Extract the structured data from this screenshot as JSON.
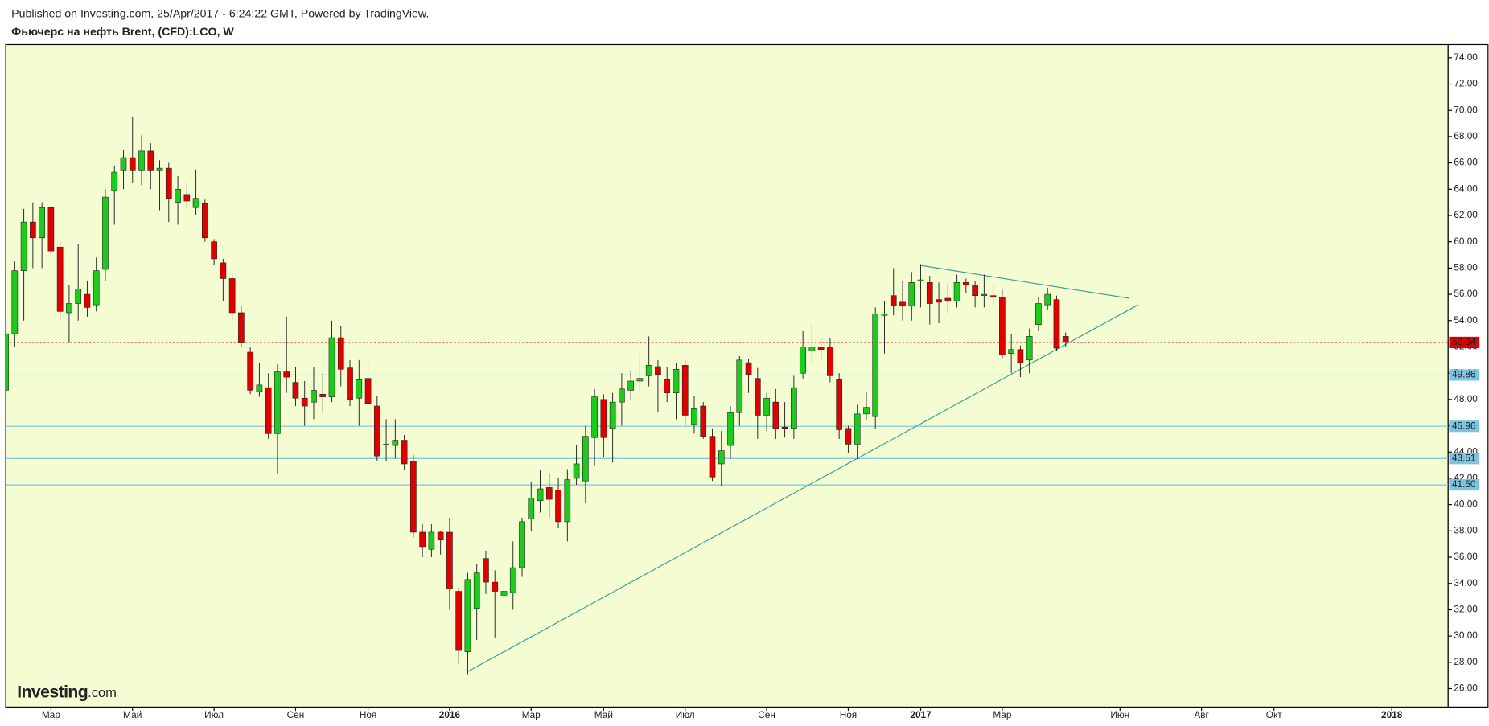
{
  "chart_data": {
    "type": "candlestick",
    "published": "Published on Investing.com, 25/Apr/2017 - 6:24:22 GMT, Powered by TradingView.",
    "title": "Фьючерс на нефть Brent, (CFD):LCO, W",
    "watermark": [
      "Investing",
      ".com"
    ],
    "categories": [
      null,
      null,
      null,
      null,
      null,
      "Мар",
      null,
      null,
      null,
      null,
      null,
      null,
      null,
      null,
      "Май",
      null,
      null,
      null,
      null,
      null,
      null,
      null,
      null,
      "Июл",
      null,
      null,
      null,
      null,
      null,
      null,
      null,
      null,
      "Сен",
      null,
      null,
      null,
      null,
      null,
      null,
      null,
      "Ноя",
      null,
      null,
      null,
      null,
      null,
      null,
      null,
      null,
      "2016",
      null,
      null,
      null,
      null,
      null,
      null,
      null,
      null,
      "Мар",
      null,
      null,
      null,
      null,
      null,
      null,
      null,
      "Май",
      null,
      null,
      null,
      null,
      null,
      null,
      null,
      null,
      "Июл",
      null,
      null,
      null,
      null,
      null,
      null,
      null,
      null,
      "Сен",
      null,
      null,
      null,
      null,
      null,
      null,
      null,
      null,
      "Ноя",
      null,
      null,
      null,
      null,
      null,
      null,
      null,
      "2017",
      null,
      null,
      null,
      null,
      null,
      null,
      null,
      null,
      "Мар",
      null,
      null,
      null,
      null,
      null,
      null,
      null,
      null,
      null,
      null,
      null,
      null,
      "Июн",
      null,
      null,
      null,
      null,
      null,
      null,
      null,
      null,
      "Авг",
      null,
      null,
      null,
      null,
      null,
      null,
      null,
      "Окт",
      null,
      null,
      null,
      null,
      null,
      null,
      null,
      null,
      null,
      null,
      null,
      null,
      "2018",
      null,
      null,
      null,
      null,
      null
    ],
    "open": [
      48.7,
      53.0,
      57.8,
      61.5,
      60.3,
      62.6,
      59.6,
      54.6,
      55.3,
      56.0,
      55.2,
      57.9,
      63.9,
      65.4,
      66.4,
      65.4,
      66.9,
      65.4,
      65.6,
      63.0,
      63.6,
      62.6,
      62.9,
      60.0,
      58.4,
      57.2,
      54.6,
      51.6,
      48.6,
      48.9,
      45.4,
      50.1,
      49.3,
      48.1,
      47.8,
      48.4,
      48.2,
      52.7,
      50.4,
      48.1,
      49.6,
      47.5,
      44.6,
      44.5,
      44.9,
      43.3,
      37.9,
      36.6,
      37.9,
      37.9,
      33.4,
      28.8,
      32.1,
      35.9,
      34.1,
      33.1,
      33.3,
      35.2,
      38.9,
      40.3,
      41.3,
      41.1,
      38.7,
      42.0,
      41.8,
      45.1,
      48.0,
      45.8,
      47.8,
      48.7,
      49.4,
      49.8,
      50.5,
      49.5,
      48.5,
      50.6,
      46.1,
      47.5,
      45.2,
      43.1,
      44.5,
      47.0,
      50.8,
      49.6,
      46.8,
      47.8,
      45.9,
      45.8,
      50.0,
      51.7,
      52.0,
      52.0,
      49.5,
      45.8,
      44.6,
      46.9,
      46.7,
      54.4,
      55.9,
      55.4,
      55.1,
      57.0,
      56.9,
      55.6,
      55.7,
      55.5,
      56.9,
      56.7,
      55.9,
      55.9,
      55.8,
      51.5,
      51.8,
      51.0,
      53.7,
      55.2,
      55.6,
      52.8,
      null,
      null,
      null,
      null,
      null,
      null,
      null,
      null,
      null,
      null,
      null,
      null,
      null,
      null,
      null,
      null,
      null,
      null,
      null,
      null,
      null,
      null,
      null,
      null,
      null,
      null,
      null,
      null,
      null,
      null,
      null,
      null,
      null,
      null,
      null,
      null,
      null,
      null,
      null,
      null,
      null
    ],
    "high": [
      53.5,
      58.5,
      62.5,
      63.0,
      63.0,
      62.8,
      60.0,
      56.7,
      59.8,
      57.0,
      58.8,
      64.0,
      65.8,
      67.0,
      69.5,
      68.1,
      67.5,
      66.2,
      66.0,
      65.0,
      64.5,
      65.5,
      63.2,
      60.2,
      58.7,
      57.6,
      55.1,
      52.0,
      50.8,
      50.0,
      50.7,
      54.3,
      50.5,
      49.4,
      50.5,
      50.0,
      54.0,
      53.6,
      51.0,
      51.0,
      51.2,
      48.3,
      46.5,
      46.5,
      45.3,
      43.8,
      38.5,
      38.5,
      38.0,
      39.0,
      33.7,
      34.8,
      35.5,
      36.5,
      35.0,
      35.4,
      37.2,
      39.0,
      41.7,
      42.6,
      42.4,
      42.0,
      42.7,
      44.5,
      46.0,
      48.8,
      48.4,
      48.5,
      50.0,
      50.2,
      51.5,
      52.8,
      51.0,
      50.5,
      50.8,
      51.0,
      48.3,
      47.8,
      45.8,
      45.6,
      47.5,
      51.3,
      51.1,
      50.4,
      48.5,
      48.8,
      47.8,
      49.8,
      53.2,
      53.8,
      52.7,
      52.7,
      50.0,
      46.0,
      47.6,
      48.6,
      55.0,
      55.5,
      58.0,
      57.0,
      57.7,
      58.3,
      57.4,
      56.9,
      56.8,
      57.5,
      57.2,
      57.0,
      57.5,
      56.8,
      56.4,
      53.0,
      52.1,
      53.4,
      55.8,
      56.5,
      55.9,
      53.1,
      null,
      null,
      null,
      null,
      null,
      null,
      null,
      null,
      null,
      null,
      null,
      null,
      null,
      null,
      null,
      null,
      null,
      null,
      null,
      null,
      null,
      null,
      null,
      null,
      null,
      null,
      null,
      null,
      null,
      null,
      null,
      null,
      null,
      null,
      null,
      null,
      null,
      null,
      null,
      null,
      null
    ],
    "low": [
      48.0,
      52.0,
      54.0,
      58.0,
      58.0,
      59.0,
      54.0,
      52.3,
      54.0,
      54.3,
      54.7,
      57.0,
      61.3,
      64.0,
      64.5,
      64.3,
      64.0,
      62.4,
      61.5,
      61.3,
      62.5,
      62.0,
      60.0,
      58.2,
      55.5,
      54.0,
      52.0,
      48.4,
      48.2,
      45.0,
      42.3,
      48.5,
      47.5,
      46.0,
      46.5,
      47.0,
      47.8,
      49.0,
      47.5,
      46.0,
      46.7,
      43.3,
      43.3,
      43.5,
      42.6,
      37.5,
      36.0,
      36.0,
      36.2,
      32.0,
      27.9,
      27.1,
      29.7,
      33.2,
      29.9,
      31.0,
      32.0,
      34.5,
      38.0,
      39.4,
      39.0,
      38.2,
      37.2,
      41.5,
      40.1,
      43.0,
      43.6,
      43.2,
      46.0,
      48.0,
      48.5,
      49.0,
      47.0,
      47.8,
      46.5,
      46.0,
      45.4,
      45.0,
      41.8,
      41.4,
      43.5,
      46.0,
      48.5,
      45.0,
      45.6,
      45.0,
      45.1,
      45.0,
      49.6,
      50.8,
      51.0,
      49.3,
      45.0,
      43.9,
      43.5,
      46.4,
      45.8,
      51.5,
      54.4,
      54.0,
      54.0,
      55.0,
      53.7,
      53.8,
      54.6,
      55.0,
      56.1,
      55.0,
      55.0,
      55.1,
      51.1,
      50.0,
      49.7,
      50.0,
      53.2,
      54.8,
      51.7,
      52.0,
      null,
      null,
      null,
      null,
      null,
      null,
      null,
      null,
      null,
      null,
      null,
      null,
      null,
      null,
      null,
      null,
      null,
      null,
      null,
      null,
      null,
      null,
      null,
      null,
      null,
      null,
      null,
      null,
      null,
      null,
      null,
      null,
      null,
      null,
      null,
      null,
      null,
      null,
      null,
      null,
      null
    ],
    "close": [
      53.0,
      57.8,
      61.5,
      60.3,
      62.6,
      59.3,
      54.7,
      55.3,
      56.4,
      55.0,
      57.8,
      63.4,
      65.3,
      66.4,
      65.4,
      66.9,
      65.4,
      65.6,
      63.3,
      64.0,
      63.1,
      63.3,
      60.3,
      58.7,
      57.2,
      54.6,
      52.3,
      48.7,
      49.1,
      45.4,
      50.1,
      49.7,
      48.1,
      47.5,
      48.7,
      48.2,
      52.7,
      50.3,
      48.0,
      49.5,
      47.7,
      43.7,
      44.6,
      44.9,
      43.1,
      37.9,
      36.8,
      37.9,
      37.3,
      33.6,
      28.9,
      34.3,
      34.8,
      34.1,
      33.4,
      33.4,
      35.2,
      38.7,
      40.5,
      41.2,
      40.4,
      38.7,
      41.9,
      43.1,
      45.2,
      48.2,
      45.1,
      47.8,
      48.8,
      49.4,
      49.6,
      50.6,
      49.9,
      48.5,
      50.3,
      46.8,
      47.3,
      45.2,
      42.1,
      44.1,
      47.0,
      51.0,
      49.9,
      46.8,
      48.1,
      45.8,
      45.8,
      48.9,
      52.0,
      52.0,
      51.8,
      49.8,
      45.7,
      44.6,
      46.9,
      47.4,
      54.5,
      54.5,
      55.1,
      55.1,
      56.9,
      57.1,
      55.3,
      55.4,
      55.5,
      56.9,
      56.7,
      55.9,
      56.0,
      55.8,
      51.4,
      51.8,
      50.8,
      52.8,
      55.3,
      56.0,
      51.9,
      52.34,
      null,
      null,
      null,
      null,
      null,
      null,
      null,
      null,
      null,
      null,
      null,
      null,
      null,
      null,
      null,
      null,
      null,
      null,
      null,
      null,
      null,
      null,
      null,
      null,
      null,
      null,
      null,
      null,
      null,
      null,
      null,
      null,
      null,
      null,
      null,
      null,
      null,
      null,
      null,
      null,
      null
    ],
    "up_color": "#1ccc1c",
    "down_color": "#e00000",
    "ylim": [
      24.6,
      75
    ],
    "yticks": [
      {
        "value": 26,
        "label": "26.00"
      },
      {
        "value": 28,
        "label": "28.00"
      },
      {
        "value": 30,
        "label": "30.00"
      },
      {
        "value": 32,
        "label": "32.00"
      },
      {
        "value": 34,
        "label": "34.00"
      },
      {
        "value": 36,
        "label": "36.00"
      },
      {
        "value": 38,
        "label": "38.00"
      },
      {
        "value": 40,
        "label": "40.00"
      },
      {
        "value": 42,
        "label": "42.00"
      },
      {
        "value": 44,
        "label": "44.00"
      },
      {
        "value": 46,
        "label": "46.00"
      },
      {
        "value": 48,
        "label": "48.00"
      },
      {
        "value": 50,
        "label": "50.00"
      },
      {
        "value": 52,
        "label": "52.00"
      },
      {
        "value": 54,
        "label": "54.00"
      },
      {
        "value": 56,
        "label": "56.00"
      },
      {
        "value": 58,
        "label": "58.00"
      },
      {
        "value": 60,
        "label": "60.00"
      },
      {
        "value": 62,
        "label": "62.00"
      },
      {
        "value": 64,
        "label": "64.00"
      },
      {
        "value": 66,
        "label": "66.00"
      },
      {
        "value": 68,
        "label": "68.00"
      },
      {
        "value": 70,
        "label": "70.00"
      },
      {
        "value": 72,
        "label": "72.00"
      },
      {
        "value": 74,
        "label": "74.00"
      }
    ],
    "levels": [
      49.86,
      45.96,
      43.51,
      41.5
    ],
    "level_labels": [
      "49.86",
      "45.96",
      "43.51",
      "41.50"
    ],
    "level_color": "#7cc4df",
    "last_price": 52.34,
    "last_price_color": "#e00000",
    "trendlines": [
      {
        "x": [
          51,
          125
        ],
        "y": [
          27.3,
          55.2
        ]
      },
      {
        "x": [
          101,
          124
        ],
        "y": [
          58.2,
          55.7
        ]
      }
    ],
    "trendline_color": "#3a9e9a"
  }
}
